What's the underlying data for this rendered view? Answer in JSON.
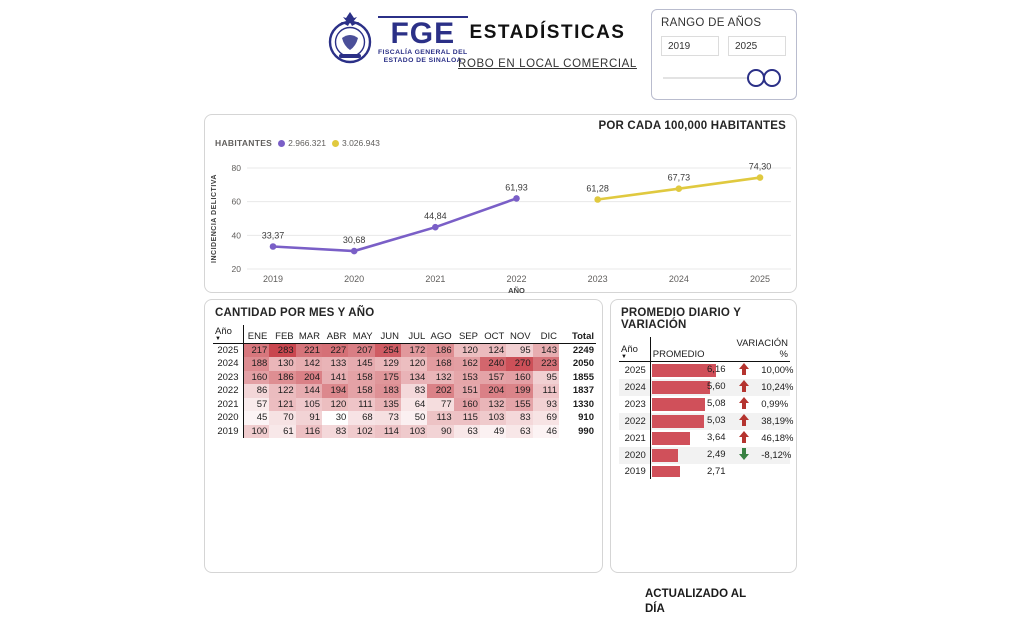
{
  "header": {
    "logo": {
      "acronym": "FGE",
      "line1": "FISCALÍA GENERAL DEL",
      "line2": "ESTADO DE SINALOA"
    },
    "title": "ESTADÍSTICAS",
    "subtitle": "ROBO EN LOCAL COMERCIAL"
  },
  "range_panel": {
    "title": "RANGO DE AÑOS",
    "start_year": "2019",
    "end_year": "2025"
  },
  "chart_panel": {
    "title": "POR CADA 100,000 HABITANTES",
    "legend_label": "HABITANTES",
    "legend_items": [
      {
        "label": "2.966.321",
        "color": "#7a5fc7"
      },
      {
        "label": "3.026.943",
        "color": "#e0c93f"
      }
    ]
  },
  "chart_data": {
    "type": "line",
    "title": "POR CADA 100,000 HABITANTES",
    "xlabel": "AÑO",
    "ylabel": "INCIDENCIA DELICTIVA",
    "x": [
      "2019",
      "2020",
      "2021",
      "2022",
      "2023",
      "2024",
      "2025"
    ],
    "ylim": [
      20,
      80
    ],
    "yticks": [
      20,
      40,
      60,
      80
    ],
    "grid": true,
    "legend_position": "top-left",
    "series": [
      {
        "name": "2.966.321",
        "color": "#7a5fc7",
        "x": [
          "2019",
          "2020",
          "2021",
          "2022"
        ],
        "values": [
          33.37,
          30.68,
          44.84,
          61.93
        ],
        "labels": [
          "33,37",
          "30,68",
          "44,84",
          "61,93"
        ]
      },
      {
        "name": "3.026.943",
        "color": "#e0c93f",
        "x": [
          "2023",
          "2024",
          "2025"
        ],
        "values": [
          61.28,
          67.73,
          74.3
        ],
        "labels": [
          "61,28",
          "67,73",
          "74,30"
        ]
      }
    ]
  },
  "monthly_table": {
    "title": "CANTIDAD POR MES Y AÑO",
    "columns": [
      "Año",
      "ENE",
      "FEB",
      "MAR",
      "ABR",
      "MAY",
      "JUN",
      "JUL",
      "AGO",
      "SEP",
      "OCT",
      "NOV",
      "DIC",
      "Total"
    ],
    "rows": [
      {
        "year": "2025",
        "values": [
          217,
          283,
          221,
          227,
          207,
          254,
          172,
          186,
          120,
          124,
          95,
          143
        ],
        "total": "2249"
      },
      {
        "year": "2024",
        "values": [
          188,
          130,
          142,
          133,
          145,
          129,
          120,
          168,
          162,
          240,
          270,
          223
        ],
        "total": "2050"
      },
      {
        "year": "2023",
        "values": [
          160,
          186,
          204,
          141,
          158,
          175,
          134,
          132,
          153,
          157,
          160,
          95
        ],
        "total": "1855"
      },
      {
        "year": "2022",
        "values": [
          86,
          122,
          144,
          194,
          158,
          183,
          83,
          202,
          151,
          204,
          199,
          111
        ],
        "total": "1837"
      },
      {
        "year": "2021",
        "values": [
          57,
          121,
          105,
          120,
          111,
          135,
          64,
          77,
          160,
          132,
          155,
          93
        ],
        "total": "1330"
      },
      {
        "year": "2020",
        "values": [
          45,
          70,
          91,
          30,
          68,
          73,
          50,
          113,
          115,
          103,
          83,
          69
        ],
        "total": "910"
      },
      {
        "year": "2019",
        "values": [
          100,
          61,
          116,
          83,
          102,
          114,
          103,
          90,
          63,
          49,
          63,
          46
        ],
        "total": "990"
      }
    ],
    "heatmap": {
      "min": 30,
      "max": 283,
      "low_color": "#ffffff",
      "high_color": "#c9474f"
    }
  },
  "summary_table": {
    "title": "PROMEDIO DIARIO Y VARIACIÓN",
    "columns": [
      "Año",
      "PROMEDIO",
      "VARIACIÓN %"
    ],
    "rows": [
      {
        "year": "2025",
        "promedio": "6,16",
        "promedio_value": 6.16,
        "direction": "up",
        "variation": "10,00%"
      },
      {
        "year": "2024",
        "promedio": "5,60",
        "promedio_value": 5.6,
        "direction": "up",
        "variation": "10,24%"
      },
      {
        "year": "2023",
        "promedio": "5,08",
        "promedio_value": 5.08,
        "direction": "up",
        "variation": "0,99%"
      },
      {
        "year": "2022",
        "promedio": "5,03",
        "promedio_value": 5.03,
        "direction": "up",
        "variation": "38,19%"
      },
      {
        "year": "2021",
        "promedio": "3,64",
        "promedio_value": 3.64,
        "direction": "up",
        "variation": "46,18%"
      },
      {
        "year": "2020",
        "promedio": "2,49",
        "promedio_value": 2.49,
        "direction": "down",
        "variation": "-8,12%"
      },
      {
        "year": "2019",
        "promedio": "2,71",
        "promedio_value": 2.71,
        "direction": "none",
        "variation": ""
      }
    ],
    "bar_color": "#d0505a",
    "bar_max": 6.16,
    "up_color": "#b5342f",
    "down_color": "#388143"
  },
  "footer": {
    "updated_label": "ACTUALIZADO AL DÍA"
  },
  "colors": {
    "brand_navy": "#2b3087",
    "panel_border": "#d5d5d5",
    "grid_line": "#e8e8e8",
    "axis_text": "#605e5c"
  }
}
